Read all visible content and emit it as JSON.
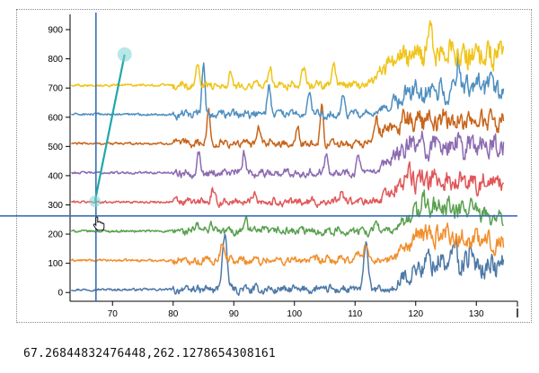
{
  "chart_data": {
    "type": "line",
    "title": "",
    "xlabel": "",
    "ylabel": "",
    "xlim": [
      63,
      135
    ],
    "ylim": [
      -30,
      940
    ],
    "x_ticks": [
      "70",
      "80",
      "90",
      "100",
      "110",
      "120",
      "130"
    ],
    "x_tick_values": [
      70,
      80,
      90,
      100,
      110,
      120,
      130
    ],
    "y_ticks": [
      "0",
      "100",
      "200",
      "300",
      "400",
      "500",
      "600",
      "700",
      "800",
      "900"
    ],
    "y_tick_values": [
      0,
      100,
      200,
      300,
      400,
      500,
      600,
      700,
      800,
      900
    ],
    "grid": false,
    "legend": "none",
    "series": [
      {
        "color": "#4e79a7",
        "baseline": 10,
        "peaks": [
          [
            88.5,
            185,
            0.55
          ],
          [
            111.8,
            160,
            0.5
          ],
          [
            126.5,
            75,
            0.4
          ],
          [
            129,
            60,
            0.35
          ]
        ],
        "rise": [
          [
            117,
            25
          ],
          [
            122,
            95
          ],
          [
            134,
            80
          ]
        ]
      },
      {
        "color": "#f28e2b",
        "baseline": 110,
        "peaks": [
          [
            88.2,
            65,
            0.5
          ],
          [
            110.5,
            30,
            0.5
          ],
          [
            111.8,
            55,
            0.45
          ],
          [
            125,
            40,
            0.4
          ]
        ],
        "rise": [
          [
            116,
            10
          ],
          [
            121,
            90
          ],
          [
            134,
            60
          ]
        ]
      },
      {
        "color": "#59a14f",
        "baseline": 210,
        "peaks": [
          [
            84,
            25,
            0.4
          ],
          [
            86.2,
            30,
            0.4
          ],
          [
            92,
            55,
            0.3
          ],
          [
            113.5,
            40,
            0.4
          ],
          [
            129,
            50,
            0.3
          ]
        ],
        "rise": [
          [
            117,
            15
          ],
          [
            121,
            90
          ],
          [
            134,
            45
          ]
        ]
      },
      {
        "color": "#e15759",
        "baseline": 310,
        "peaks": [
          [
            86.5,
            35,
            0.4
          ],
          [
            93.5,
            40,
            0.4
          ],
          [
            107.8,
            40,
            0.4
          ],
          [
            118.5,
            45,
            0.4
          ]
        ],
        "rise": [
          [
            114,
            10
          ],
          [
            119,
            75
          ],
          [
            134,
            65
          ]
        ]
      },
      {
        "color": "#8c6bb1",
        "baseline": 410,
        "peaks": [
          [
            84.2,
            65,
            0.4
          ],
          [
            91.7,
            70,
            0.35
          ],
          [
            105.3,
            75,
            0.4
          ],
          [
            110.5,
            55,
            0.4
          ]
        ],
        "rise": [
          [
            114,
            10
          ],
          [
            119,
            95
          ],
          [
            134,
            90
          ]
        ]
      },
      {
        "color": "#c8651b",
        "baseline": 510,
        "peaks": [
          [
            85.8,
            120,
            0.35
          ],
          [
            94,
            50,
            0.4
          ],
          [
            100.5,
            55,
            0.4
          ],
          [
            104.5,
            130,
            0.35
          ],
          [
            113.5,
            75,
            0.4
          ]
        ],
        "rise": [
          [
            113,
            15
          ],
          [
            118,
            80
          ],
          [
            134,
            75
          ]
        ]
      },
      {
        "color": "#4f8fc0",
        "baseline": 610,
        "peaks": [
          [
            85,
            180,
            0.35
          ],
          [
            95.8,
            95,
            0.4
          ],
          [
            102.5,
            75,
            0.4
          ],
          [
            108,
            70,
            0.4
          ],
          [
            127,
            110,
            0.4
          ]
        ],
        "rise": [
          [
            114,
            10
          ],
          [
            119,
            75
          ],
          [
            134,
            90
          ]
        ]
      },
      {
        "color": "#f0c419",
        "baseline": 710,
        "peaks": [
          [
            84,
            75,
            0.4
          ],
          [
            89.5,
            45,
            0.4
          ],
          [
            96,
            60,
            0.4
          ],
          [
            101.5,
            55,
            0.4
          ],
          [
            106.5,
            75,
            0.4
          ],
          [
            122.5,
            95,
            0.5
          ]
        ],
        "rise": [
          [
            112,
            10
          ],
          [
            118,
            100
          ],
          [
            134,
            110
          ]
        ]
      }
    ],
    "crosshair": {
      "x": 67.26844832476448,
      "y": 262.1278654308161
    },
    "drag_line": {
      "x0": 67.1,
      "y0": 312,
      "x1": 72,
      "y1": 815
    }
  },
  "readout": {
    "text": "67.26844832476448,262.1278654308161"
  }
}
